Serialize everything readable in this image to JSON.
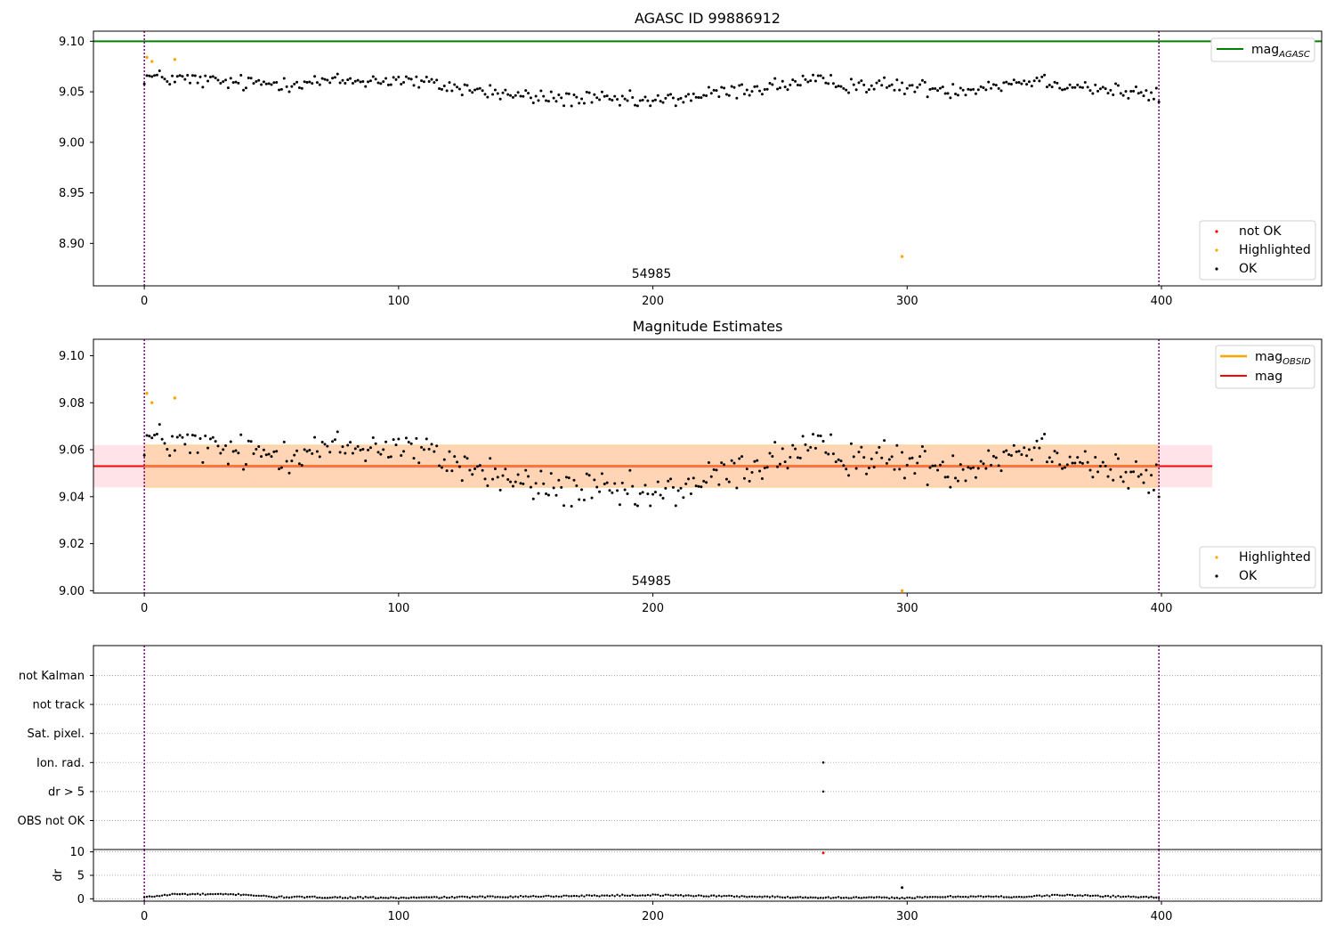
{
  "colors": {
    "ok": "#000000",
    "highlighted": "#ffa500",
    "not_ok": "#ff0000",
    "mag_agasc": "#008000",
    "mag_obsid": "#ffa500",
    "mag": "#ff0000",
    "vline": "#800080",
    "grid": "#b0b0b0"
  },
  "chart_data": [
    {
      "type": "scatter",
      "title": "AGASC ID 99886912",
      "xlim": [
        -20,
        463
      ],
      "ylim": [
        8.858,
        9.11
      ],
      "x_ticks": [
        0,
        100,
        200,
        300,
        400
      ],
      "y_ticks": [
        8.9,
        8.95,
        9.0,
        9.05,
        9.1
      ],
      "y_tick_labels": [
        "8.90",
        "8.95",
        "9.00",
        "9.05",
        "9.10"
      ],
      "vlines": [
        0,
        399
      ],
      "hline": {
        "name": "mag_AGASC",
        "value": 9.1
      },
      "annotation": {
        "text": "54985",
        "x": 200
      },
      "legend_lines": [
        {
          "label": "mag",
          "sub": "AGASC",
          "color_key": "mag_agasc"
        }
      ],
      "legend_points": [
        {
          "label": "not OK",
          "color_key": "not_ok"
        },
        {
          "label": "Highlighted",
          "color_key": "highlighted"
        },
        {
          "label": "OK",
          "color_key": "ok"
        }
      ],
      "highlighted_points": [
        [
          1,
          9.084
        ],
        [
          3,
          9.08
        ],
        [
          12,
          9.082
        ],
        [
          298,
          8.887
        ]
      ],
      "ok_series": {
        "x_start": 0,
        "x_end": 399,
        "baseline": [
          [
            0,
            9.065
          ],
          [
            40,
            9.058
          ],
          [
            100,
            9.062
          ],
          [
            150,
            9.045
          ],
          [
            200,
            9.04
          ],
          [
            260,
            9.06
          ],
          [
            320,
            9.052
          ],
          [
            350,
            9.062
          ],
          [
            399,
            9.045
          ]
        ],
        "noise": 0.008
      }
    },
    {
      "type": "scatter",
      "title": "Magnitude Estimates",
      "xlim": [
        -20,
        463
      ],
      "ylim": [
        8.999,
        9.107
      ],
      "x_ticks": [
        0,
        100,
        200,
        300,
        400
      ],
      "y_ticks": [
        9.0,
        9.02,
        9.04,
        9.06,
        9.08,
        9.1
      ],
      "y_tick_labels": [
        "9.00",
        "9.02",
        "9.04",
        "9.06",
        "9.08",
        "9.10"
      ],
      "vlines": [
        0,
        399
      ],
      "mag_line": 9.053,
      "band": {
        "lower": 9.044,
        "upper": 9.062,
        "x_end": 420
      },
      "annotation": {
        "text": "54985",
        "x": 200
      },
      "legend_lines": [
        {
          "label": "mag",
          "sub": "OBSID",
          "color_key": "mag_obsid"
        },
        {
          "label": "mag",
          "sub": "",
          "color_key": "mag"
        }
      ],
      "legend_points": [
        {
          "label": "Highlighted",
          "color_key": "highlighted"
        },
        {
          "label": "OK",
          "color_key": "ok"
        }
      ],
      "highlighted_points": [
        [
          1,
          9.084
        ],
        [
          3,
          9.08
        ],
        [
          12,
          9.082
        ],
        [
          298,
          9.0
        ]
      ],
      "ok_series": {
        "x_start": 0,
        "x_end": 399,
        "baseline": [
          [
            0,
            9.065
          ],
          [
            40,
            9.058
          ],
          [
            100,
            9.062
          ],
          [
            150,
            9.045
          ],
          [
            200,
            9.04
          ],
          [
            260,
            9.06
          ],
          [
            320,
            9.052
          ],
          [
            350,
            9.062
          ],
          [
            399,
            9.045
          ]
        ],
        "noise": 0.008
      }
    },
    {
      "type": "scatter",
      "xlim": [
        -20,
        463
      ],
      "categories": [
        "not Kalman",
        "not track",
        "Sat. pixel.",
        "Ion. rad.",
        "dr > 5",
        "OBS not OK"
      ],
      "vlines": [
        0,
        399
      ],
      "flag_points": [
        {
          "category": "Ion. rad.",
          "x": 267
        },
        {
          "category": "dr > 5",
          "x": 267
        }
      ]
    },
    {
      "type": "scatter",
      "xlim": [
        -20,
        463
      ],
      "ylim": [
        -0.5,
        10.5
      ],
      "ylabel": "dr",
      "x_ticks": [
        0,
        100,
        200,
        300,
        400
      ],
      "y_ticks": [
        0,
        5,
        10
      ],
      "y_tick_labels": [
        "0",
        "5",
        "10"
      ],
      "vlines": [
        0,
        399
      ],
      "outliers": [
        [
          267,
          9.8,
          "not_ok"
        ],
        [
          298,
          2.4,
          "ok"
        ]
      ],
      "dr_series": {
        "x_start": 0,
        "x_end": 399,
        "baseline": [
          [
            0,
            0.3
          ],
          [
            12,
            1.0
          ],
          [
            40,
            0.9
          ],
          [
            50,
            0.4
          ],
          [
            100,
            0.2
          ],
          [
            200,
            0.8
          ],
          [
            260,
            0.3
          ],
          [
            300,
            0.2
          ],
          [
            320,
            0.5
          ],
          [
            345,
            0.4
          ],
          [
            360,
            0.8
          ],
          [
            399,
            0.3
          ]
        ],
        "noise": 0.15
      }
    }
  ]
}
